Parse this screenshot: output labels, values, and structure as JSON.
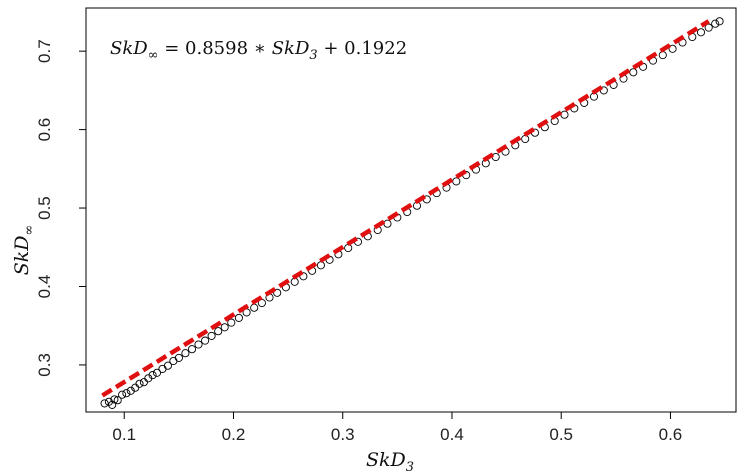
{
  "chart_data": {
    "type": "scatter",
    "xlabel": "SkD",
    "xlabel_sub": "3",
    "ylabel": "SkD",
    "ylabel_sub": "∞",
    "xlim": [
      0.065,
      0.66
    ],
    "ylim": [
      0.24,
      0.755
    ],
    "xticks": [
      0.1,
      0.2,
      0.3,
      0.4,
      0.5,
      0.6
    ],
    "xtick_labels": [
      "0.1",
      "0.2",
      "0.3",
      "0.4",
      "0.5",
      "0.6"
    ],
    "yticks": [
      0.3,
      0.4,
      0.5,
      0.6,
      0.7
    ],
    "ytick_labels": [
      "0.3",
      "0.4",
      "0.5",
      "0.6",
      "0.7"
    ],
    "annotation": {
      "lhs": "SkD",
      "lhs_sub": "∞",
      "mid": " = 0.8598 ∗ ",
      "rhs": "SkD",
      "rhs_sub": "3",
      "tail": " + 0.1922"
    },
    "grid": false,
    "series": [
      {
        "kind": "points",
        "marker": "open-circle",
        "color": "#000000",
        "points": [
          [
            0.082,
            0.251
          ],
          [
            0.086,
            0.253
          ],
          [
            0.089,
            0.249
          ],
          [
            0.091,
            0.256
          ],
          [
            0.094,
            0.255
          ],
          [
            0.098,
            0.262
          ],
          [
            0.102,
            0.264
          ],
          [
            0.106,
            0.267
          ],
          [
            0.11,
            0.271
          ],
          [
            0.114,
            0.276
          ],
          [
            0.118,
            0.278
          ],
          [
            0.122,
            0.283
          ],
          [
            0.126,
            0.287
          ],
          [
            0.13,
            0.29
          ],
          [
            0.135,
            0.295
          ],
          [
            0.14,
            0.299
          ],
          [
            0.145,
            0.305
          ],
          [
            0.15,
            0.309
          ],
          [
            0.156,
            0.315
          ],
          [
            0.162,
            0.32
          ],
          [
            0.168,
            0.326
          ],
          [
            0.174,
            0.331
          ],
          [
            0.18,
            0.337
          ],
          [
            0.186,
            0.343
          ],
          [
            0.192,
            0.348
          ],
          [
            0.198,
            0.354
          ],
          [
            0.205,
            0.36
          ],
          [
            0.212,
            0.367
          ],
          [
            0.219,
            0.373
          ],
          [
            0.226,
            0.379
          ],
          [
            0.233,
            0.386
          ],
          [
            0.24,
            0.392
          ],
          [
            0.248,
            0.399
          ],
          [
            0.256,
            0.406
          ],
          [
            0.264,
            0.413
          ],
          [
            0.272,
            0.42
          ],
          [
            0.28,
            0.427
          ],
          [
            0.288,
            0.434
          ],
          [
            0.296,
            0.441
          ],
          [
            0.305,
            0.449
          ],
          [
            0.314,
            0.457
          ],
          [
            0.323,
            0.464
          ],
          [
            0.332,
            0.472
          ],
          [
            0.341,
            0.48
          ],
          [
            0.35,
            0.488
          ],
          [
            0.359,
            0.495
          ],
          [
            0.368,
            0.503
          ],
          [
            0.377,
            0.511
          ],
          [
            0.386,
            0.519
          ],
          [
            0.395,
            0.526
          ],
          [
            0.404,
            0.534
          ],
          [
            0.413,
            0.542
          ],
          [
            0.422,
            0.549
          ],
          [
            0.431,
            0.557
          ],
          [
            0.44,
            0.565
          ],
          [
            0.449,
            0.572
          ],
          [
            0.458,
            0.58
          ],
          [
            0.467,
            0.588
          ],
          [
            0.476,
            0.596
          ],
          [
            0.485,
            0.603
          ],
          [
            0.494,
            0.611
          ],
          [
            0.503,
            0.619
          ],
          [
            0.512,
            0.627
          ],
          [
            0.521,
            0.634
          ],
          [
            0.53,
            0.642
          ],
          [
            0.539,
            0.65
          ],
          [
            0.548,
            0.657
          ],
          [
            0.557,
            0.665
          ],
          [
            0.566,
            0.673
          ],
          [
            0.575,
            0.68
          ],
          [
            0.584,
            0.688
          ],
          [
            0.593,
            0.695
          ],
          [
            0.602,
            0.703
          ],
          [
            0.611,
            0.711
          ],
          [
            0.62,
            0.718
          ],
          [
            0.628,
            0.724
          ],
          [
            0.635,
            0.73
          ],
          [
            0.641,
            0.735
          ],
          [
            0.645,
            0.738
          ]
        ]
      },
      {
        "kind": "line",
        "style": "dashed",
        "color": "#e01010",
        "slope": 0.8598,
        "intercept": 0.1922,
        "x_range": [
          0.08,
          0.635
        ]
      }
    ]
  }
}
